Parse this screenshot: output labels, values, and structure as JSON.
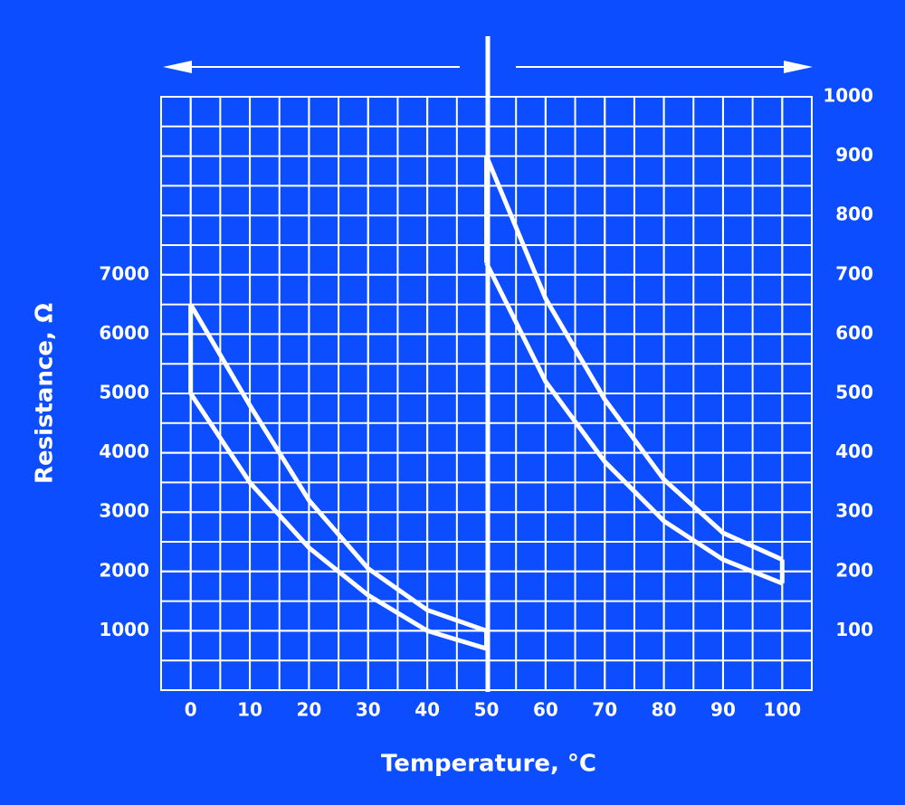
{
  "chart_data": {
    "type": "line",
    "x_label": "Temperature, °C",
    "y_label": "Resistance, Ω",
    "xlim": [
      -5,
      105
    ],
    "xticks": [
      0,
      10,
      20,
      30,
      40,
      50,
      60,
      70,
      80,
      90,
      100
    ],
    "ylim": [
      0,
      10000
    ],
    "yticks": [
      1000,
      2000,
      3000,
      4000,
      5000,
      6000,
      7000
    ],
    "y2lim": [
      0,
      1000
    ],
    "y2ticks": [
      100,
      200,
      300,
      400,
      500,
      600,
      700,
      800,
      900,
      1000
    ],
    "grid": true,
    "series": [
      {
        "color": "#ffffff",
        "axis": "y",
        "x": [
          0,
          10,
          20,
          30,
          40,
          50
        ],
        "values": [
          6500,
          4800,
          3200,
          2050,
          1350,
          1000
        ]
      },
      {
        "color": "#ffffff",
        "axis": "y",
        "x": [
          0,
          10,
          20,
          30,
          40,
          50
        ],
        "values": [
          5000,
          3500,
          2400,
          1600,
          1000,
          700
        ]
      },
      {
        "color": "#ffffff",
        "axis": "y2",
        "x": [
          50,
          60,
          70,
          80,
          90,
          100
        ],
        "values": [
          900,
          660,
          490,
          355,
          265,
          220
        ]
      },
      {
        "color": "#ffffff",
        "axis": "y2",
        "x": [
          50,
          60,
          70,
          80,
          90,
          100
        ],
        "values": [
          720,
          520,
          385,
          285,
          220,
          180
        ]
      }
    ]
  }
}
